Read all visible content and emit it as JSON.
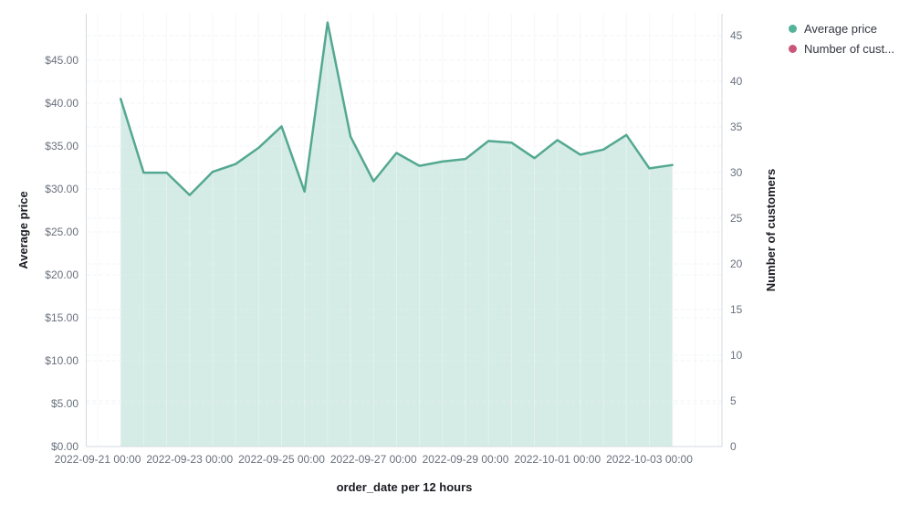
{
  "chart_data": {
    "type": "area",
    "title": "",
    "x_axis": {
      "title": "order_date per 12 hours",
      "tick_labels": [
        "2022-09-21 00:00",
        "2022-09-23 00:00",
        "2022-09-25 00:00",
        "2022-09-27 00:00",
        "2022-09-29 00:00",
        "2022-10-01 00:00",
        "2022-10-03 00:00"
      ]
    },
    "y_axis_left": {
      "title": "Average price",
      "tick_labels": [
        "$0.00",
        "$5.00",
        "$10.00",
        "$15.00",
        "$20.00",
        "$25.00",
        "$30.00",
        "$35.00",
        "$40.00",
        "$45.00"
      ],
      "tick_values": [
        0,
        5,
        10,
        15,
        20,
        25,
        30,
        35,
        40,
        45
      ],
      "range": [
        0,
        50
      ]
    },
    "y_axis_right": {
      "title": "Number of customers",
      "tick_labels": [
        "0",
        "5",
        "10",
        "15",
        "20",
        "25",
        "30",
        "35",
        "40",
        "45"
      ],
      "tick_values": [
        0,
        5,
        10,
        15,
        20,
        25,
        30,
        35,
        40,
        45
      ],
      "range": [
        0,
        47
      ]
    },
    "legend": {
      "position": "right",
      "items": [
        {
          "label": "Average price",
          "color": "#54B399"
        },
        {
          "label": "Number of cust...",
          "color": "#CA5779"
        }
      ]
    },
    "grid": true,
    "series": [
      {
        "name": "Average price",
        "type": "area",
        "axis": "left",
        "line_color": "#54A891",
        "fill_color": "#54B399",
        "fill_opacity": 0.25,
        "x": [
          "2022-09-21 12:00",
          "2022-09-22 00:00",
          "2022-09-22 12:00",
          "2022-09-23 00:00",
          "2022-09-23 12:00",
          "2022-09-24 00:00",
          "2022-09-24 12:00",
          "2022-09-25 00:00",
          "2022-09-25 12:00",
          "2022-09-26 00:00",
          "2022-09-26 12:00",
          "2022-09-27 00:00",
          "2022-09-27 12:00",
          "2022-09-28 00:00",
          "2022-09-28 12:00",
          "2022-09-29 00:00",
          "2022-09-29 12:00",
          "2022-09-30 00:00",
          "2022-09-30 12:00",
          "2022-10-01 00:00",
          "2022-10-01 12:00",
          "2022-10-02 00:00",
          "2022-10-02 12:00",
          "2022-10-03 00:00",
          "2022-10-03 12:00"
        ],
        "values": [
          40.5,
          31.9,
          31.9,
          29.3,
          32.0,
          32.9,
          34.8,
          37.3,
          29.7,
          49.4,
          36.1,
          30.9,
          34.2,
          32.7,
          33.2,
          33.5,
          35.6,
          35.4,
          33.6,
          35.7,
          34.0,
          34.6,
          36.3,
          32.4,
          32.8
        ]
      },
      {
        "name": "Number of customers",
        "type": "line",
        "axis": "right",
        "line_color": "#CA5779",
        "x": [],
        "values": []
      }
    ]
  }
}
